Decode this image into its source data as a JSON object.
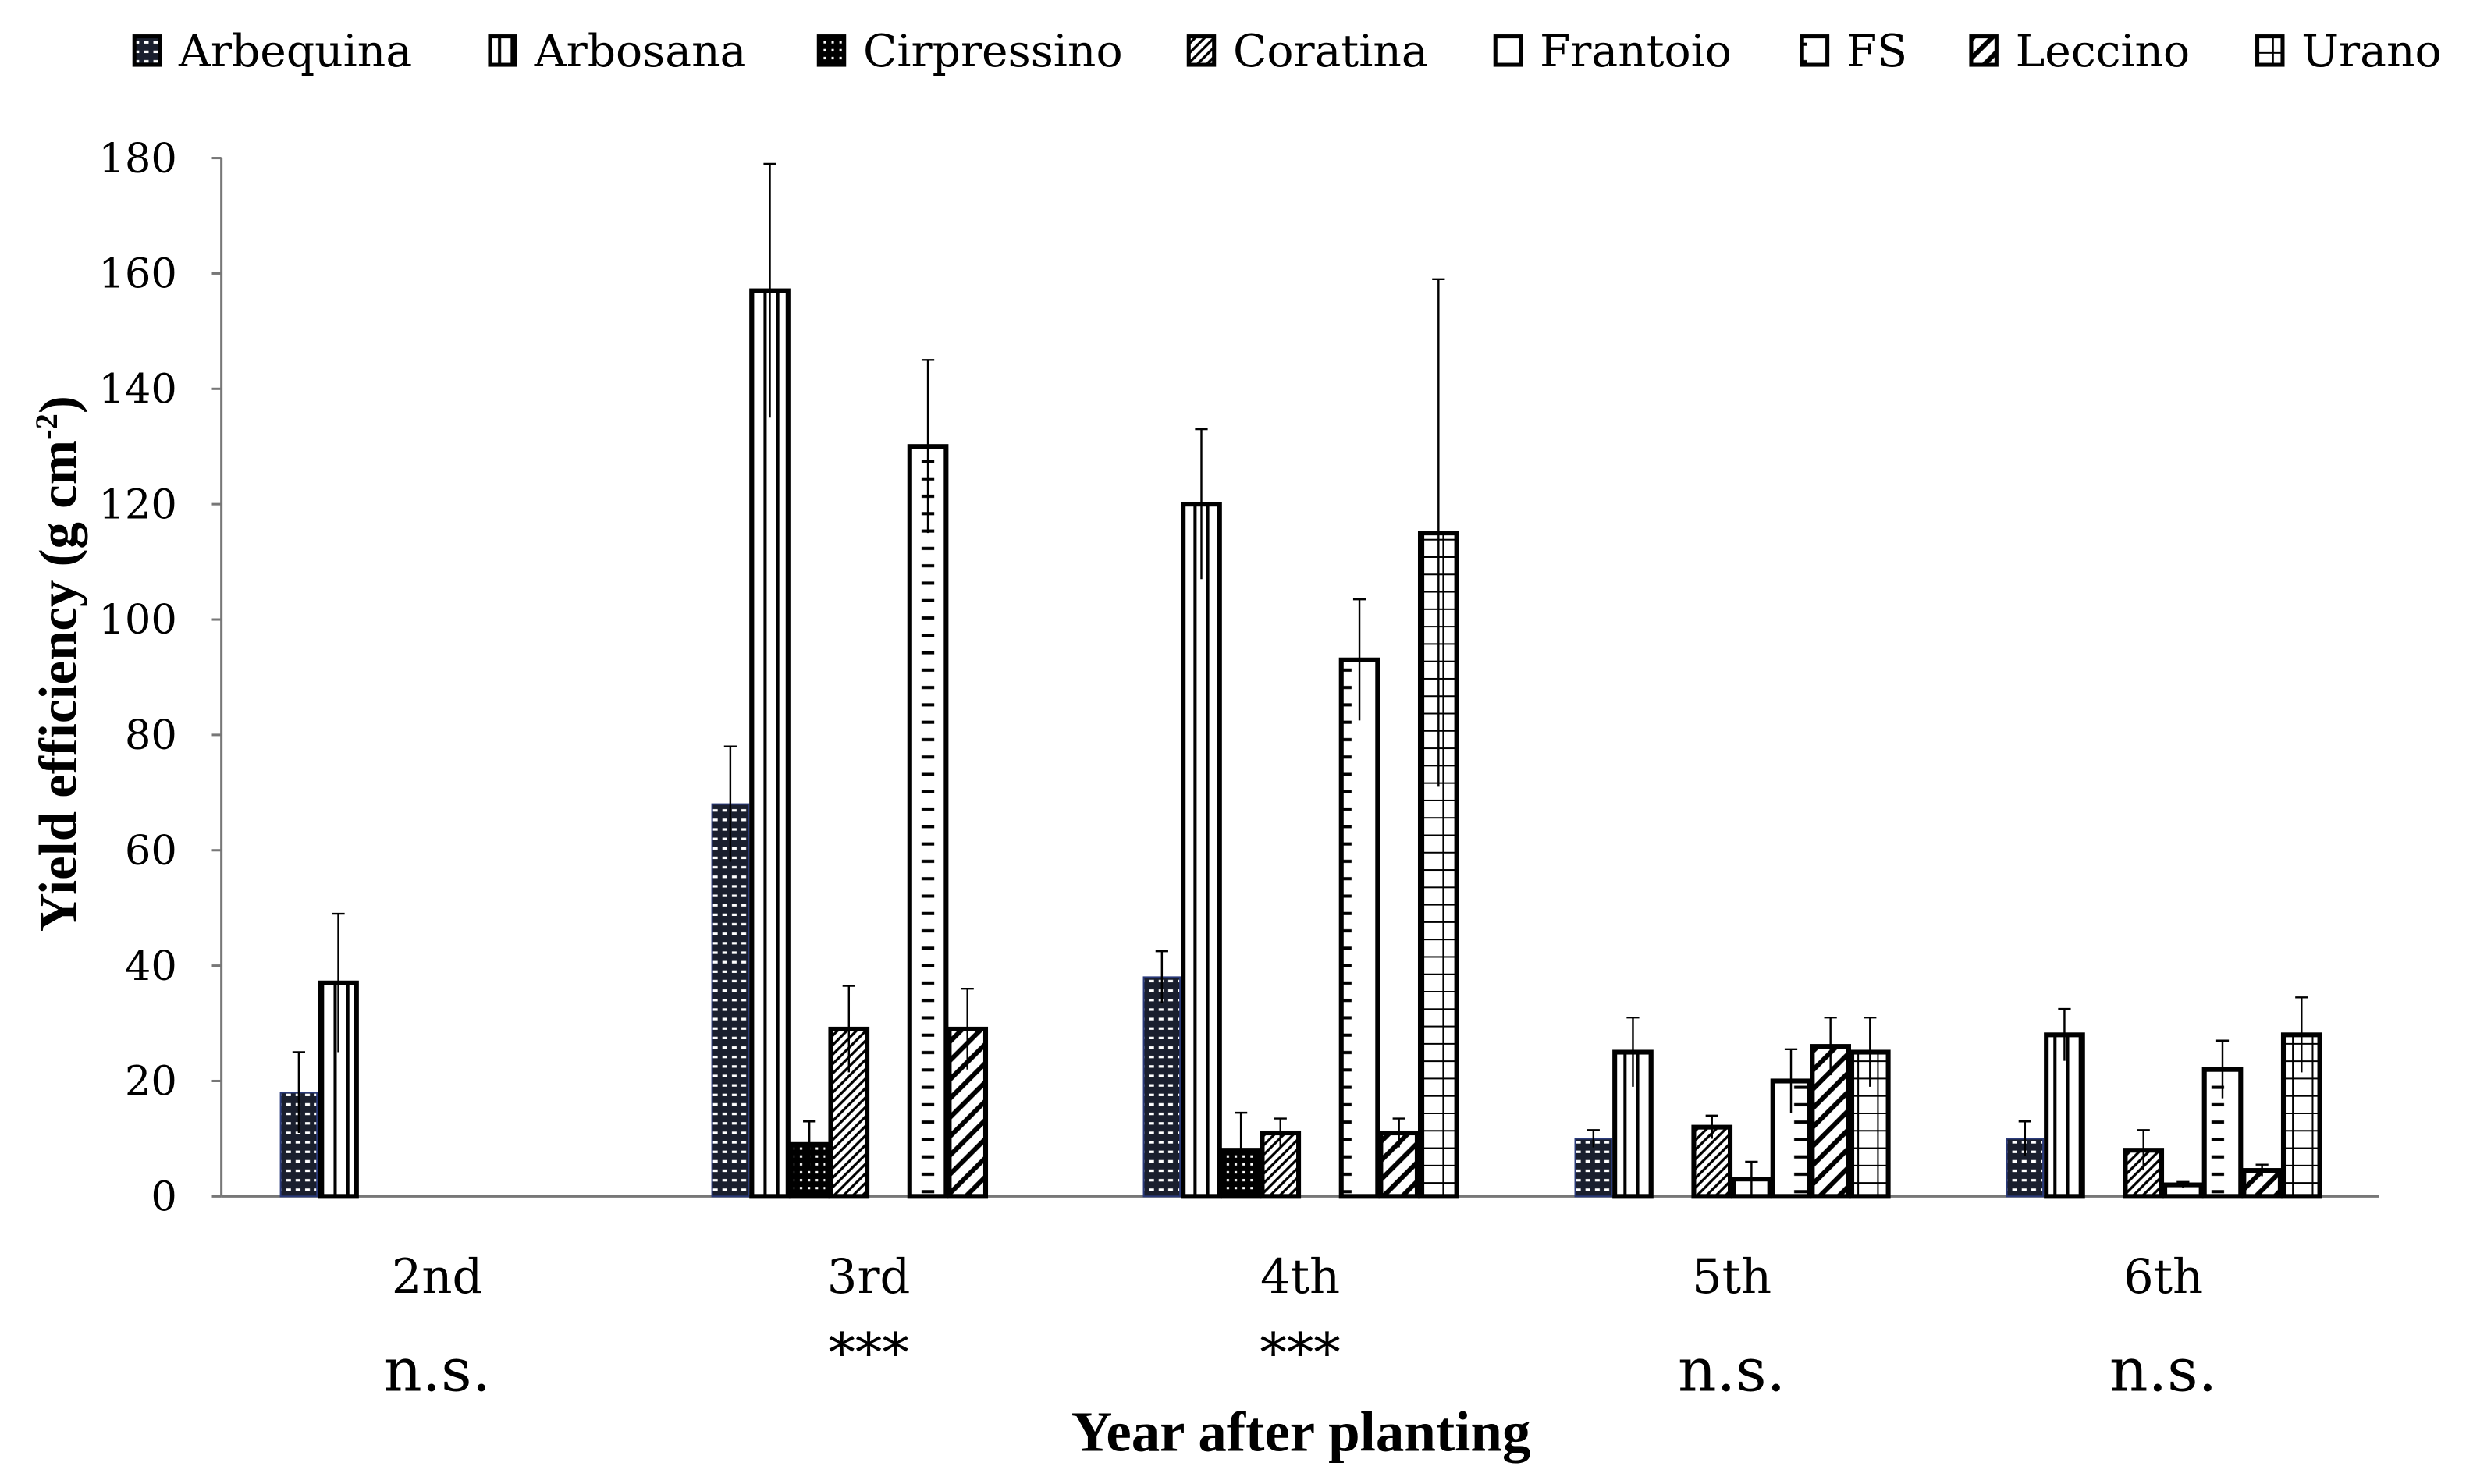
{
  "chart_data": {
    "type": "bar",
    "title": "",
    "xlabel": "Year after planting",
    "ylabel": "Yield efficiency (g cm",
    "ylabel_sup": "-2",
    "ylabel_close": ")",
    "ylim": [
      0,
      180
    ],
    "yticks": [
      "0",
      "20",
      "40",
      "60",
      "80",
      "100",
      "120",
      "140",
      "160",
      "180"
    ],
    "categories": [
      "2nd",
      "3rd",
      "4th",
      "5th",
      "6th"
    ],
    "significance": [
      "n.s.",
      "***",
      "***",
      "n.s.",
      "n.s."
    ],
    "legend_position": "top",
    "series": [
      {
        "name": "Arbequina",
        "pattern": "dots",
        "values": [
          18,
          68,
          38,
          10,
          10
        ],
        "error": [
          7,
          10,
          4.5,
          1.5,
          3
        ]
      },
      {
        "name": "Arbosana",
        "pattern": "vlines",
        "values": [
          37,
          157,
          120,
          25,
          28
        ],
        "error": [
          12,
          22,
          13,
          6,
          4.5
        ]
      },
      {
        "name": "Cirpressino",
        "pattern": "darkdots",
        "values": [
          null,
          9,
          8,
          null,
          null
        ],
        "error": [
          null,
          4,
          6.5,
          null,
          null
        ]
      },
      {
        "name": "Coratina",
        "pattern": "thindiag",
        "values": [
          null,
          29,
          11,
          12,
          8
        ],
        "error": [
          null,
          7.5,
          2.5,
          2,
          3.5
        ]
      },
      {
        "name": "Frantoio",
        "pattern": "empty",
        "values": [
          null,
          null,
          null,
          3,
          2
        ],
        "error": [
          null,
          null,
          null,
          3,
          0.5
        ]
      },
      {
        "name": "FS",
        "pattern": "hdash",
        "values": [
          null,
          130,
          93,
          20,
          22
        ],
        "error": [
          null,
          15,
          10.5,
          5.5,
          5
        ]
      },
      {
        "name": "Leccino",
        "pattern": "thickdiag",
        "values": [
          null,
          29,
          11,
          26,
          4.5
        ],
        "error": [
          null,
          7,
          2.5,
          5,
          1
        ]
      },
      {
        "name": "Urano",
        "pattern": "grid",
        "values": [
          null,
          null,
          115,
          25,
          28
        ],
        "error": [
          null,
          null,
          44,
          6,
          6.5
        ]
      }
    ],
    "grid": false
  }
}
